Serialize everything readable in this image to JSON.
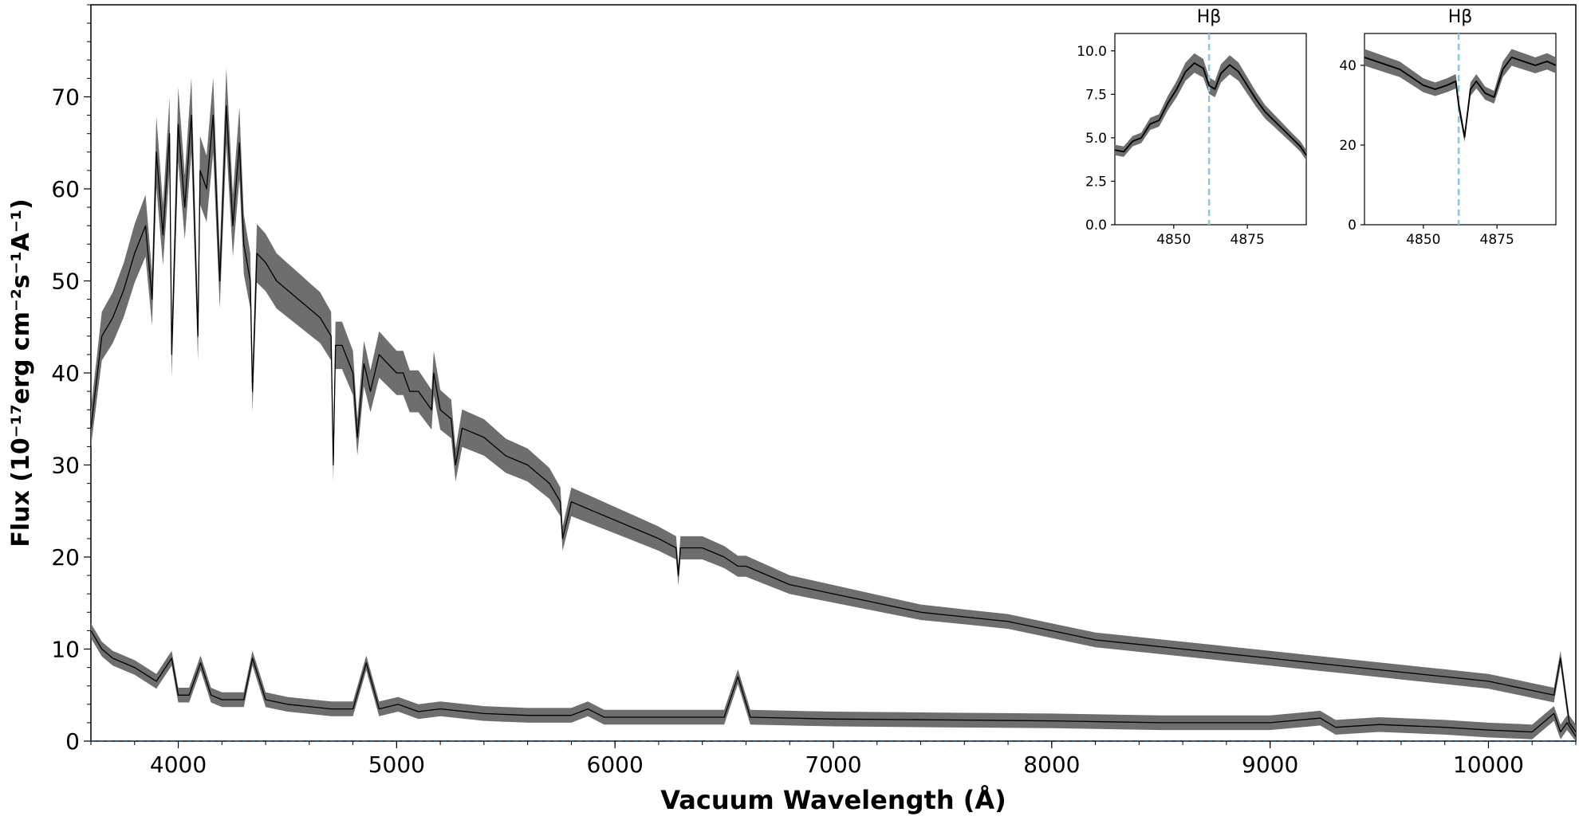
{
  "chart_data": [
    {
      "type": "line",
      "title": "",
      "xlabel": "Vacuum Wavelength (Å)",
      "ylabel": "Flux (10⁻¹⁷erg cm⁻²s⁻¹A⁻¹)",
      "xlim": [
        3600,
        10400
      ],
      "ylim": [
        0,
        80
      ],
      "xticks": [
        4000,
        5000,
        6000,
        7000,
        8000,
        9000,
        10000
      ],
      "yticks": [
        0,
        10,
        20,
        30,
        40,
        50,
        60,
        70
      ],
      "grid": false,
      "zero_line": {
        "y": 0,
        "style": "dashed",
        "color": "#1f4e79"
      },
      "series_color": "#000000",
      "error_band_color": "#6e6e6e",
      "series": [
        {
          "x": [
            3600,
            3650,
            3700,
            3750,
            3800,
            3850,
            3880,
            3900,
            3930,
            3960,
            3970,
            4000,
            4030,
            4060,
            4090,
            4100,
            4130,
            4160,
            4190,
            4220,
            4250,
            4280,
            4300,
            4330,
            4340,
            4360,
            4400,
            4450,
            4500,
            4550,
            4600,
            4650,
            4700,
            4710,
            4720,
            4750,
            4800,
            4820,
            4850,
            4861,
            4880,
            4920,
            4960,
            5000,
            5030,
            5060,
            5100,
            5160,
            5170,
            5200,
            5250,
            5270,
            5300,
            5400,
            5500,
            5600,
            5700,
            5750,
            5760,
            5800,
            5900,
            6000,
            6100,
            6200,
            6280,
            6290,
            6300,
            6400,
            6500,
            6563,
            6600,
            6700,
            6800,
            6900,
            7000,
            7200,
            7400,
            7600,
            7800,
            8000,
            8200,
            8400,
            8600,
            8800,
            9000,
            9200,
            9400,
            9600,
            9800,
            10000,
            10200,
            10300,
            10330,
            10370,
            10400
          ],
          "y": [
            34,
            44,
            46,
            49,
            53,
            56,
            48,
            64,
            55,
            66,
            42,
            67,
            58,
            68,
            44,
            62,
            60,
            68,
            50,
            69,
            56,
            65,
            54,
            50,
            38,
            53,
            52,
            50,
            49,
            48,
            47,
            46,
            44,
            30,
            43,
            43,
            40,
            33,
            41,
            40,
            38,
            42,
            41,
            40,
            40,
            38,
            38,
            36,
            40,
            36,
            35,
            30,
            34,
            33,
            31,
            30,
            28,
            26,
            22,
            26,
            25,
            24,
            23,
            22,
            21,
            18,
            21,
            21,
            20,
            19,
            19,
            18,
            17,
            16.5,
            16,
            15,
            14,
            13.5,
            13,
            12,
            11,
            10.5,
            10,
            9.5,
            9,
            8.5,
            8,
            7.5,
            7,
            6.5,
            5.5,
            5,
            9,
            2,
            1
          ]
        },
        {
          "x": [
            3600,
            3650,
            3700,
            3800,
            3900,
            3970,
            4000,
            4050,
            4102,
            4150,
            4200,
            4300,
            4340,
            4400,
            4500,
            4700,
            4800,
            4861,
            4920,
            5007,
            5100,
            5200,
            5400,
            5600,
            5800,
            5876,
            5950,
            6200,
            6500,
            6563,
            6620,
            6800,
            7000,
            7500,
            8000,
            8500,
            9000,
            9229,
            9300,
            9500,
            9800,
            10000,
            10200,
            10300,
            10330,
            10360,
            10400
          ],
          "y": [
            12,
            10,
            9,
            8,
            6.5,
            9,
            5,
            5,
            8.5,
            5,
            4.5,
            4.5,
            9,
            4.5,
            4,
            3.5,
            3.5,
            8.5,
            3.5,
            4,
            3.2,
            3.5,
            3,
            2.8,
            2.8,
            3.5,
            2.6,
            2.6,
            2.6,
            7,
            2.6,
            2.5,
            2.4,
            2.3,
            2.2,
            2,
            2,
            2.5,
            1.5,
            1.8,
            1.5,
            1.2,
            1,
            3,
            1,
            2,
            0.5
          ]
        }
      ]
    },
    {
      "type": "line",
      "title": "Hβ",
      "xlim": [
        4830,
        4895
      ],
      "ylim": [
        0,
        11
      ],
      "xticks": [
        4850,
        4875
      ],
      "yticks": [
        0.0,
        2.5,
        5.0,
        7.5,
        10.0
      ],
      "ytick_labels": [
        "0.0",
        "2.5",
        "5.0",
        "7.5",
        "10.0"
      ],
      "vline": {
        "x": 4862,
        "style": "dashed",
        "color": "#8ec5d8"
      },
      "series": [
        {
          "x": [
            4830,
            4833,
            4836,
            4839,
            4842,
            4845,
            4848,
            4851,
            4854,
            4857,
            4860,
            4862,
            4864,
            4866,
            4869,
            4872,
            4875,
            4878,
            4881,
            4884,
            4887,
            4890,
            4893,
            4895
          ],
          "y": [
            4.3,
            4.2,
            4.8,
            5.0,
            5.8,
            6.0,
            7.0,
            7.8,
            8.8,
            9.3,
            9.0,
            8.0,
            7.8,
            8.7,
            9.2,
            8.8,
            8.0,
            7.2,
            6.5,
            6.0,
            5.5,
            5.0,
            4.5,
            4.0
          ]
        }
      ]
    },
    {
      "type": "line",
      "title": "Hβ",
      "xlim": [
        4830,
        4895
      ],
      "ylim": [
        0,
        48
      ],
      "xticks": [
        4850,
        4875
      ],
      "yticks": [
        0,
        20,
        40
      ],
      "ytick_labels": [
        "0",
        "20",
        "40"
      ],
      "vline": {
        "x": 4862,
        "style": "dashed",
        "color": "#8ec5d8"
      },
      "series": [
        {
          "x": [
            4830,
            4834,
            4838,
            4842,
            4846,
            4850,
            4854,
            4858,
            4861,
            4862,
            4864,
            4866,
            4868,
            4871,
            4874,
            4877,
            4880,
            4884,
            4888,
            4892,
            4895
          ],
          "y": [
            42,
            41,
            40,
            39,
            37,
            35,
            34,
            35,
            36,
            30,
            22,
            34,
            36,
            33,
            32,
            39,
            42,
            41,
            40,
            41,
            40
          ]
        }
      ]
    }
  ]
}
